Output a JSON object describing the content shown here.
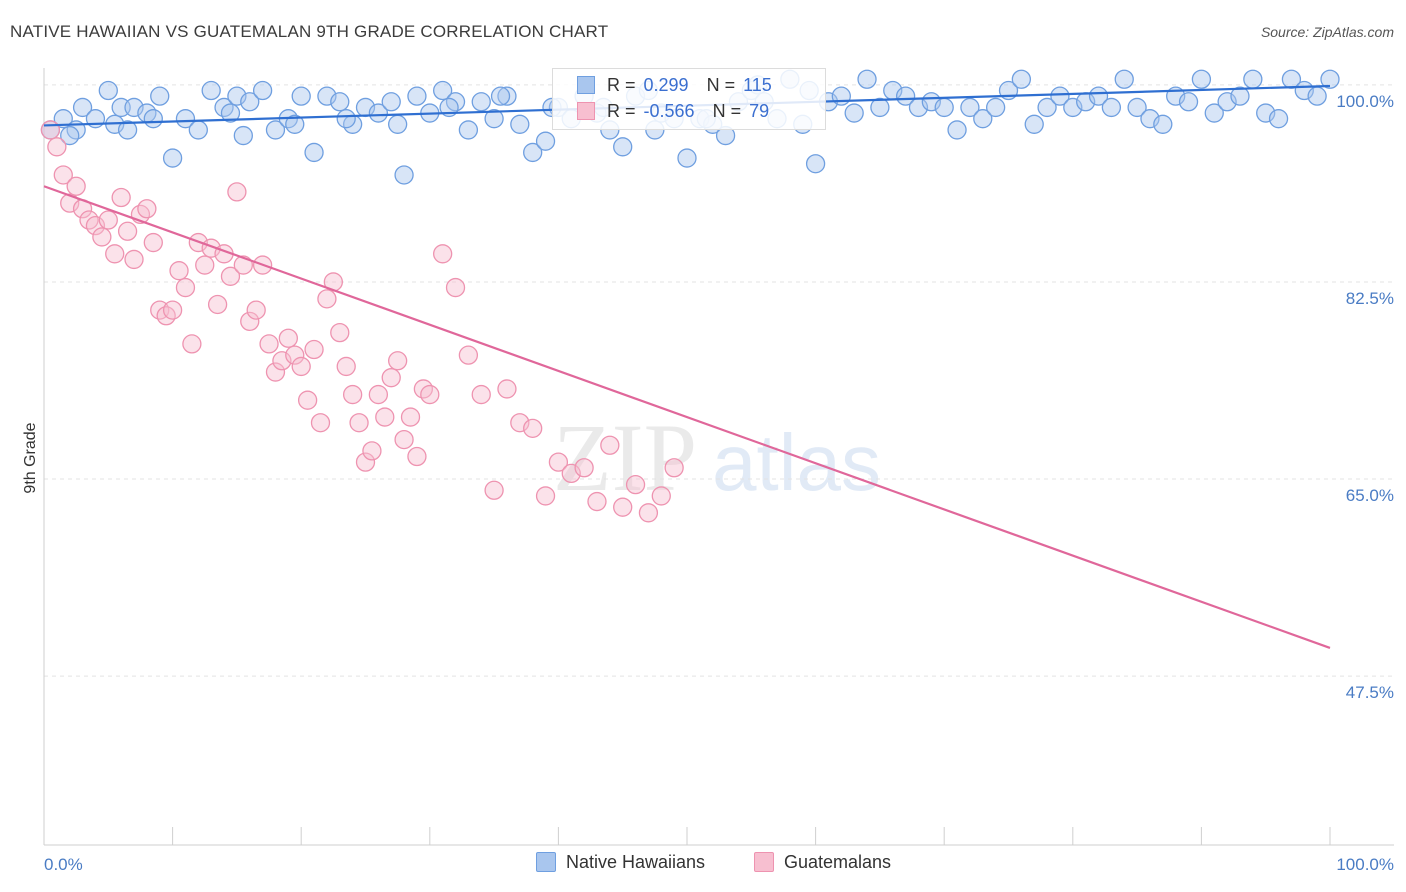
{
  "header": {
    "title": "NATIVE HAWAIIAN VS GUATEMALAN 9TH GRADE CORRELATION CHART",
    "source": "Source: ZipAtlas.com"
  },
  "watermark": {
    "zip": "ZIP",
    "atlas": "atlas"
  },
  "legend": {
    "series1": {
      "r_label": "R =",
      "r_value": "0.299",
      "n_label": "N =",
      "n_value": "115"
    },
    "series2": {
      "r_label": "R =",
      "r_value": "-0.566",
      "n_label": "N =",
      "n_value": "79"
    }
  },
  "bottom_legend": {
    "series1": "Native Hawaiians",
    "series2": "Guatemalans"
  },
  "colors": {
    "blue_fill": "#a9c6ee",
    "blue_stroke": "#6f9fe0",
    "blue_line": "#2f6fd1",
    "pink_fill": "#f7bfd0",
    "pink_stroke": "#ee93b0",
    "pink_line": "#e0679a",
    "tick_text": "#4a7cc4",
    "grid": "#e3e3e3"
  },
  "chart_data": {
    "type": "scatter",
    "title": "NATIVE HAWAIIAN VS GUATEMALAN 9TH GRADE CORRELATION CHART",
    "xlabel": "",
    "ylabel": "9th Grade",
    "xlim": [
      0,
      100
    ],
    "ylim": [
      32.5,
      101.5
    ],
    "x_ticks": [
      "0.0%",
      "100.0%"
    ],
    "y_ticks": [
      {
        "value": 100,
        "label": "100.0%"
      },
      {
        "value": 82.5,
        "label": "82.5%"
      },
      {
        "value": 65,
        "label": "65.0%"
      },
      {
        "value": 47.5,
        "label": "47.5%"
      }
    ],
    "grid": true,
    "series": [
      {
        "name": "Native Hawaiians",
        "R": 0.299,
        "N": 115,
        "trend": [
          [
            0,
            96.4
          ],
          [
            100,
            99.9
          ]
        ],
        "points": [
          [
            0.5,
            96.0
          ],
          [
            1.5,
            97.0
          ],
          [
            2.5,
            96.0
          ],
          [
            3,
            98.0
          ],
          [
            4,
            97.0
          ],
          [
            5,
            99.5
          ],
          [
            5.5,
            96.5
          ],
          [
            6,
            98.0
          ],
          [
            7,
            98.0
          ],
          [
            8,
            97.5
          ],
          [
            9,
            99.0
          ],
          [
            10,
            93.5
          ],
          [
            11,
            97.0
          ],
          [
            12,
            96.0
          ],
          [
            13,
            99.5
          ],
          [
            14,
            98.0
          ],
          [
            15,
            99.0
          ],
          [
            15.5,
            95.5
          ],
          [
            16,
            98.5
          ],
          [
            17,
            99.5
          ],
          [
            18,
            96.0
          ],
          [
            19,
            97.0
          ],
          [
            20,
            99.0
          ],
          [
            21,
            94.0
          ],
          [
            22,
            99.0
          ],
          [
            23,
            98.5
          ],
          [
            24,
            96.5
          ],
          [
            25,
            98.0
          ],
          [
            26,
            97.5
          ],
          [
            27,
            98.5
          ],
          [
            28,
            92.0
          ],
          [
            29,
            99.0
          ],
          [
            30,
            97.5
          ],
          [
            31,
            99.5
          ],
          [
            32,
            98.5
          ],
          [
            33,
            96.0
          ],
          [
            34,
            98.5
          ],
          [
            35,
            97.0
          ],
          [
            36,
            99.0
          ],
          [
            37,
            96.5
          ],
          [
            38,
            94.0
          ],
          [
            39,
            95.0
          ],
          [
            40,
            98.0
          ],
          [
            41,
            97.0
          ],
          [
            42,
            99.0
          ],
          [
            43,
            97.5
          ],
          [
            44,
            96.0
          ],
          [
            45,
            94.5
          ],
          [
            46,
            99.0
          ],
          [
            47,
            99.5
          ],
          [
            48,
            97.5
          ],
          [
            49,
            97.0
          ],
          [
            50,
            93.5
          ],
          [
            51,
            97.0
          ],
          [
            52,
            96.5
          ],
          [
            53,
            95.5
          ],
          [
            54,
            98.5
          ],
          [
            55,
            99.5
          ],
          [
            56,
            98.5
          ],
          [
            57,
            97.0
          ],
          [
            58,
            100.5
          ],
          [
            59,
            96.5
          ],
          [
            60,
            93.0
          ],
          [
            61,
            98.5
          ],
          [
            62,
            99.0
          ],
          [
            63,
            97.5
          ],
          [
            64,
            100.5
          ],
          [
            65,
            98.0
          ],
          [
            66,
            99.5
          ],
          [
            67,
            99.0
          ],
          [
            68,
            98.0
          ],
          [
            69,
            98.5
          ],
          [
            70,
            98.0
          ],
          [
            71,
            96.0
          ],
          [
            72,
            98.0
          ],
          [
            73,
            97.0
          ],
          [
            74,
            98.0
          ],
          [
            75,
            99.5
          ],
          [
            76,
            100.5
          ],
          [
            77,
            96.5
          ],
          [
            78,
            98.0
          ],
          [
            79,
            99.0
          ],
          [
            80,
            98.0
          ],
          [
            81,
            98.5
          ],
          [
            82,
            99.0
          ],
          [
            83,
            98.0
          ],
          [
            84,
            100.5
          ],
          [
            85,
            98.0
          ],
          [
            86,
            97.0
          ],
          [
            87,
            96.5
          ],
          [
            88,
            99.0
          ],
          [
            89,
            98.5
          ],
          [
            90,
            100.5
          ],
          [
            91,
            97.5
          ],
          [
            92,
            98.5
          ],
          [
            93,
            99.0
          ],
          [
            94,
            100.5
          ],
          [
            95,
            97.5
          ],
          [
            96,
            97.0
          ],
          [
            97,
            100.5
          ],
          [
            98,
            99.5
          ],
          [
            99,
            99.0
          ],
          [
            100,
            100.5
          ],
          [
            2,
            95.5
          ],
          [
            6.5,
            96.0
          ],
          [
            8.5,
            97.0
          ],
          [
            14.5,
            97.5
          ],
          [
            19.5,
            96.5
          ],
          [
            23.5,
            97.0
          ],
          [
            27.5,
            96.5
          ],
          [
            31.5,
            98.0
          ],
          [
            35.5,
            99.0
          ],
          [
            39.5,
            98.0
          ],
          [
            43.5,
            98.0
          ],
          [
            47.5,
            96.0
          ],
          [
            51.5,
            97.0
          ],
          [
            55.5,
            100.0
          ],
          [
            59.5,
            99.5
          ]
        ]
      },
      {
        "name": "Guatemalans",
        "R": -0.566,
        "N": 79,
        "trend": [
          [
            0,
            91.0
          ],
          [
            100,
            50.0
          ]
        ],
        "points": [
          [
            0.5,
            96.0
          ],
          [
            1,
            94.5
          ],
          [
            1.5,
            92.0
          ],
          [
            2,
            89.5
          ],
          [
            2.5,
            91.0
          ],
          [
            3,
            89.0
          ],
          [
            3.5,
            88.0
          ],
          [
            4,
            87.5
          ],
          [
            4.5,
            86.5
          ],
          [
            5,
            88.0
          ],
          [
            5.5,
            85.0
          ],
          [
            6,
            90.0
          ],
          [
            6.5,
            87.0
          ],
          [
            7,
            84.5
          ],
          [
            7.5,
            88.5
          ],
          [
            8,
            89.0
          ],
          [
            8.5,
            86.0
          ],
          [
            9,
            80.0
          ],
          [
            9.5,
            79.5
          ],
          [
            10,
            80.0
          ],
          [
            10.5,
            83.5
          ],
          [
            11,
            82.0
          ],
          [
            11.5,
            77.0
          ],
          [
            12,
            86.0
          ],
          [
            12.5,
            84.0
          ],
          [
            13,
            85.5
          ],
          [
            13.5,
            80.5
          ],
          [
            14,
            85.0
          ],
          [
            14.5,
            83.0
          ],
          [
            15,
            90.5
          ],
          [
            15.5,
            84.0
          ],
          [
            16,
            79.0
          ],
          [
            16.5,
            80.0
          ],
          [
            17,
            84.0
          ],
          [
            17.5,
            77.0
          ],
          [
            18,
            74.5
          ],
          [
            18.5,
            75.5
          ],
          [
            19,
            77.5
          ],
          [
            19.5,
            76.0
          ],
          [
            20,
            75.0
          ],
          [
            20.5,
            72.0
          ],
          [
            21,
            76.5
          ],
          [
            21.5,
            70.0
          ],
          [
            22,
            81.0
          ],
          [
            22.5,
            82.5
          ],
          [
            23,
            78.0
          ],
          [
            23.5,
            75.0
          ],
          [
            24,
            72.5
          ],
          [
            24.5,
            70.0
          ],
          [
            25,
            66.5
          ],
          [
            25.5,
            67.5
          ],
          [
            26,
            72.5
          ],
          [
            26.5,
            70.5
          ],
          [
            27,
            74.0
          ],
          [
            27.5,
            75.5
          ],
          [
            28,
            68.5
          ],
          [
            28.5,
            70.5
          ],
          [
            29,
            67.0
          ],
          [
            29.5,
            73.0
          ],
          [
            30,
            72.5
          ],
          [
            31,
            85.0
          ],
          [
            32,
            82.0
          ],
          [
            33,
            76.0
          ],
          [
            34,
            72.5
          ],
          [
            35,
            64.0
          ],
          [
            36,
            73.0
          ],
          [
            37,
            70.0
          ],
          [
            38,
            69.5
          ],
          [
            39,
            63.5
          ],
          [
            40,
            66.5
          ],
          [
            41,
            65.5
          ],
          [
            42,
            66.0
          ],
          [
            43,
            63.0
          ],
          [
            44,
            68.0
          ],
          [
            45,
            62.5
          ],
          [
            46,
            64.5
          ],
          [
            47,
            62.0
          ],
          [
            48,
            63.5
          ],
          [
            49,
            66.0
          ]
        ]
      }
    ]
  }
}
